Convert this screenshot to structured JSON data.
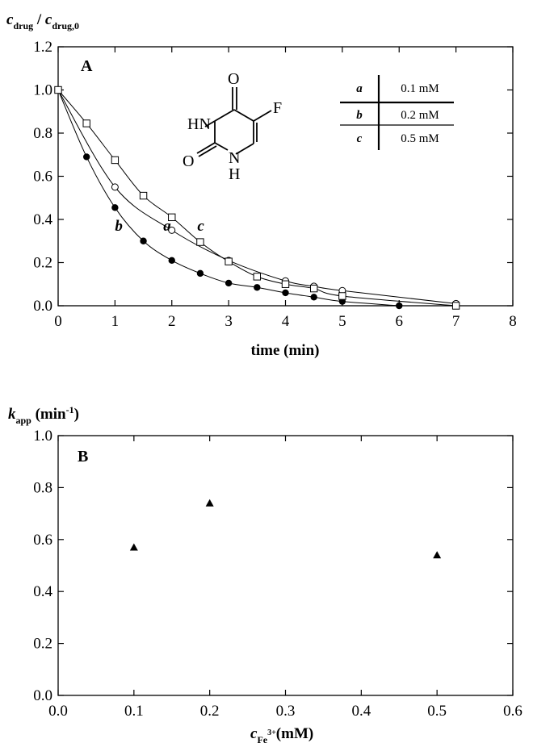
{
  "chart_data": [
    {
      "type": "scatter",
      "panel_label": "A",
      "ylabel_main": "c",
      "ylabel_sub": "drug",
      "ylabel_sep": " / ",
      "ylabel_main2": "c",
      "ylabel_sub2": "drug,0",
      "xlabel": "time (min)",
      "xlim": [
        0,
        8
      ],
      "ylim": [
        0.0,
        1.2
      ],
      "xticks": [
        "0",
        "1",
        "2",
        "3",
        "4",
        "5",
        "6",
        "7",
        "8"
      ],
      "yticks": [
        "0.0",
        "0.2",
        "0.4",
        "0.6",
        "0.8",
        "1.0",
        "1.2"
      ],
      "series": [
        {
          "name": "a",
          "marker": "open-circle",
          "label_x": 1.85,
          "label_y": 0.34,
          "x": [
            0,
            1,
            2,
            3,
            4,
            4.5,
            5,
            7
          ],
          "y": [
            1.0,
            0.55,
            0.35,
            0.21,
            0.115,
            0.09,
            0.07,
            0.01
          ]
        },
        {
          "name": "b",
          "marker": "filled-circle",
          "label_x": 1.0,
          "label_y": 0.34,
          "x": [
            0,
            0.5,
            1,
            1.5,
            2,
            2.5,
            3,
            3.5,
            4,
            4.5,
            5,
            6
          ],
          "y": [
            1.0,
            0.69,
            0.455,
            0.3,
            0.21,
            0.15,
            0.105,
            0.085,
            0.06,
            0.04,
            0.02,
            0.0
          ]
        },
        {
          "name": "c",
          "marker": "open-square",
          "label_x": 2.45,
          "label_y": 0.34,
          "x": [
            0,
            0.5,
            1,
            1.5,
            2,
            2.5,
            3,
            3.5,
            4,
            4.5,
            5,
            7
          ],
          "y": [
            1.0,
            0.845,
            0.675,
            0.51,
            0.41,
            0.295,
            0.205,
            0.135,
            0.1,
            0.08,
            0.045,
            0.0
          ]
        }
      ],
      "legend": [
        {
          "key": "a",
          "value": "0.1 mM"
        },
        {
          "key": "b",
          "value": "0.2 mM"
        },
        {
          "key": "c",
          "value": "0.5 mM"
        }
      ],
      "molecule": {
        "o_top": "O",
        "f": "F",
        "hn": "HN",
        "o_left": "O",
        "n": "N",
        "h": "H"
      },
      "grid": false
    },
    {
      "type": "scatter",
      "panel_label": "B",
      "ylabel_main": "k",
      "ylabel_sub": "app",
      "ylabel_unit": " (min",
      "ylabel_sup": "-1",
      "ylabel_close": ")",
      "xlabel_main": "c",
      "xlabel_sub": "Fe",
      "xlabel_sup": "3+",
      "xlabel_unit": "(mM)",
      "xlim": [
        0.0,
        0.6
      ],
      "ylim": [
        0.0,
        1.0
      ],
      "xticks": [
        "0.0",
        "0.1",
        "0.2",
        "0.3",
        "0.4",
        "0.5",
        "0.6"
      ],
      "yticks": [
        "0.0",
        "0.2",
        "0.4",
        "0.6",
        "0.8",
        "1.0"
      ],
      "series": [
        {
          "marker": "filled-triangle",
          "x": [
            0.1,
            0.2,
            0.5
          ],
          "y": [
            0.57,
            0.74,
            0.54
          ]
        }
      ],
      "grid": false
    }
  ]
}
